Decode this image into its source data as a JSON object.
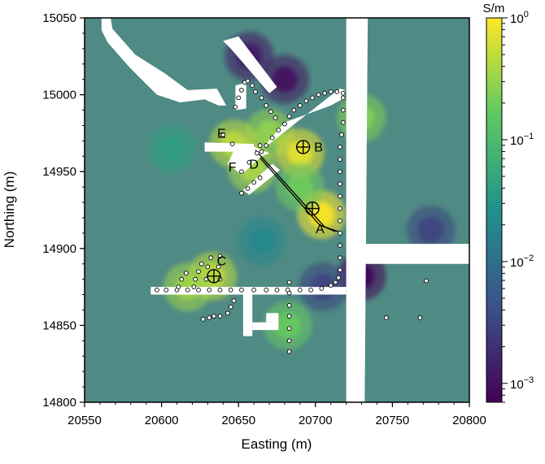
{
  "chart_data": {
    "type": "heatmap",
    "title": "",
    "xlabel": "Easting (m)",
    "ylabel": "Northing (m)",
    "xlim": [
      20550,
      20800
    ],
    "ylim": [
      14800,
      15050
    ],
    "xticks": [
      "20550",
      "20600",
      "20650",
      "20700",
      "20750",
      "20800"
    ],
    "yticks": [
      "14800",
      "14850",
      "14900",
      "14950",
      "15000",
      "15050"
    ],
    "colorbar": {
      "unit": "S/m",
      "scale": "log",
      "range": [
        0.0007,
        1
      ],
      "tick_labels": [
        {
          "value": 1,
          "base": "10",
          "exp": "0"
        },
        {
          "value": 0.1,
          "base": "10",
          "exp": "−1"
        },
        {
          "value": 0.01,
          "base": "10",
          "exp": "−2"
        },
        {
          "value": 0.001,
          "base": "10",
          "exp": "−3"
        }
      ],
      "colors": [
        "#440154",
        "#3b528b",
        "#21918c",
        "#5ec962",
        "#fde725"
      ]
    },
    "background_color": "#4f8a84",
    "anomalies": [
      {
        "x": 20670,
        "y": 14975,
        "value": 0.3
      },
      {
        "x": 20690,
        "y": 14962,
        "value": 0.8
      },
      {
        "x": 20704,
        "y": 14922,
        "value": 1.0
      },
      {
        "x": 20633,
        "y": 14882,
        "value": 0.5
      },
      {
        "x": 20617,
        "y": 14875,
        "value": 0.35
      },
      {
        "x": 20647,
        "y": 14968,
        "value": 0.5
      },
      {
        "x": 20659,
        "y": 14952,
        "value": 0.4
      },
      {
        "x": 20730,
        "y": 14985,
        "value": 0.25
      },
      {
        "x": 20682,
        "y": 14850,
        "value": 0.18
      },
      {
        "x": 20680,
        "y": 15010,
        "value": 0.001
      },
      {
        "x": 20657,
        "y": 15025,
        "value": 0.0012
      },
      {
        "x": 20730,
        "y": 14882,
        "value": 0.0008
      },
      {
        "x": 20775,
        "y": 14912,
        "value": 0.003
      },
      {
        "x": 20705,
        "y": 14875,
        "value": 0.003
      },
      {
        "x": 20690,
        "y": 14940,
        "value": 0.2
      },
      {
        "x": 20607,
        "y": 14965,
        "value": 0.04
      },
      {
        "x": 20665,
        "y": 14905,
        "value": 0.02
      }
    ],
    "masks": [
      {
        "type": "polygon",
        "points": [
          [
            20561,
            15050
          ],
          [
            20567,
            15050
          ],
          [
            20568,
            15043
          ],
          [
            20583,
            15026
          ],
          [
            20602,
            15014
          ],
          [
            20617,
            15003
          ],
          [
            20636,
            15004
          ],
          [
            20642,
            14993
          ],
          [
            20637,
            14993
          ],
          [
            20628,
            14997
          ],
          [
            20612,
            14995
          ],
          [
            20597,
            15000
          ],
          [
            20579,
            15018
          ],
          [
            20565,
            15034
          ],
          [
            20561,
            15042
          ]
        ]
      },
      {
        "type": "polygon",
        "points": [
          [
            20640,
            15035
          ],
          [
            20645,
            15030
          ],
          [
            20670,
            15001
          ],
          [
            20675,
            15005
          ],
          [
            20650,
            15038
          ]
        ]
      },
      {
        "type": "polygon",
        "points": [
          [
            20648,
            14990
          ],
          [
            20655,
            14991
          ],
          [
            20655,
            15008
          ],
          [
            20648,
            15006
          ]
        ]
      },
      {
        "type": "polygon",
        "points": [
          [
            20664,
            14966
          ],
          [
            20670,
            14968
          ],
          [
            20708,
            14998
          ],
          [
            20716,
            15004
          ],
          [
            20719,
            15003
          ],
          [
            20719,
            14998
          ],
          [
            20710,
            14993
          ],
          [
            20680,
            14982
          ],
          [
            20668,
            14968
          ]
        ]
      },
      {
        "type": "polygon",
        "points": [
          [
            20643,
            14955
          ],
          [
            20652,
            14948
          ],
          [
            20665,
            14960
          ],
          [
            20670,
            14962
          ],
          [
            20658,
            14967
          ],
          [
            20648,
            14966
          ]
        ]
      },
      {
        "type": "polygon",
        "points": [
          [
            20628,
            14969
          ],
          [
            20660,
            14968
          ],
          [
            20660,
            14963
          ],
          [
            20628,
            14963
          ]
        ]
      },
      {
        "type": "polygon",
        "points": [
          [
            20653,
            14938
          ],
          [
            20657,
            14935
          ],
          [
            20677,
            14951
          ],
          [
            20672,
            14955
          ]
        ]
      },
      {
        "type": "polygon",
        "points": [
          [
            20720,
            15050
          ],
          [
            20734,
            15050
          ],
          [
            20732,
            14800
          ],
          [
            20720,
            14800
          ]
        ]
      },
      {
        "type": "polygon",
        "points": [
          [
            20728,
            14903
          ],
          [
            20800,
            14903
          ],
          [
            20800,
            14890
          ],
          [
            20728,
            14890
          ]
        ]
      },
      {
        "type": "polygon",
        "points": [
          [
            20593,
            14875
          ],
          [
            20720,
            14875
          ],
          [
            20720,
            14870
          ],
          [
            20593,
            14870
          ]
        ]
      },
      {
        "type": "polygon",
        "points": [
          [
            20653,
            14870
          ],
          [
            20659,
            14870
          ],
          [
            20659,
            14843
          ],
          [
            20653,
            14843
          ]
        ]
      },
      {
        "type": "polygon",
        "points": [
          [
            20659,
            14852
          ],
          [
            20676,
            14852
          ],
          [
            20676,
            14847
          ],
          [
            20659,
            14847
          ]
        ]
      },
      {
        "type": "polygon",
        "points": [
          [
            20668,
            14852
          ],
          [
            20676,
            14852
          ],
          [
            20676,
            14858
          ],
          [
            20668,
            14858
          ]
        ]
      }
    ],
    "electrode_lines": [
      [
        [
          20646,
          14968
        ],
        [
          20640,
          14974
        ]
      ],
      [
        [
          20652,
          14950
        ],
        [
          20657,
          14956
        ],
        [
          20662,
          14962
        ],
        [
          20664,
          14967
        ]
      ],
      [
        [
          20652,
          14936
        ],
        [
          20656,
          14939
        ],
        [
          20660,
          14943
        ],
        [
          20664,
          14946
        ]
      ],
      [
        [
          20648,
          14992
        ],
        [
          20650,
          14998
        ],
        [
          20652,
          15003
        ],
        [
          20654,
          15008
        ],
        [
          20656,
          15009
        ],
        [
          20659,
          15006
        ],
        [
          20661,
          15002
        ],
        [
          20665,
          14998
        ],
        [
          20668,
          14993
        ],
        [
          20671,
          14989
        ],
        [
          20674,
          14985
        ]
      ],
      [
        [
          20665,
          14963
        ],
        [
          20668,
          14967
        ],
        [
          20672,
          14972
        ],
        [
          20676,
          14977
        ],
        [
          20680,
          14981
        ],
        [
          20683,
          14986
        ],
        [
          20686,
          14990
        ],
        [
          20690,
          14993
        ],
        [
          20694,
          14996
        ],
        [
          20698,
          14998
        ],
        [
          20702,
          15000
        ],
        [
          20706,
          15001
        ],
        [
          20710,
          15002
        ],
        [
          20714,
          15002
        ],
        [
          20718,
          15001
        ]
      ],
      [
        [
          20718,
          14998
        ],
        [
          20718,
          14990
        ],
        [
          20718,
          14982
        ],
        [
          20717,
          14974
        ],
        [
          20716,
          14966
        ],
        [
          20716,
          14958
        ],
        [
          20716,
          14950
        ],
        [
          20716,
          14942
        ],
        [
          20716,
          14934
        ],
        [
          20716,
          14926
        ],
        [
          20716,
          14918
        ],
        [
          20716,
          14910
        ],
        [
          20716,
          14902
        ],
        [
          20716,
          14894
        ],
        [
          20716,
          14886
        ],
        [
          20715,
          14881
        ],
        [
          20713,
          14878
        ]
      ],
      [
        [
          20597,
          14873
        ],
        [
          20603,
          14873
        ],
        [
          20610,
          14873
        ],
        [
          20617,
          14873
        ],
        [
          20624,
          14873
        ],
        [
          20631,
          14873
        ],
        [
          20638,
          14873
        ],
        [
          20645,
          14873
        ],
        [
          20652,
          14873
        ],
        [
          20660,
          14873
        ],
        [
          20668,
          14873
        ],
        [
          20675,
          14873
        ],
        [
          20682,
          14873
        ],
        [
          20690,
          14873
        ],
        [
          20697,
          14873
        ],
        [
          20704,
          14874
        ],
        [
          20710,
          14876
        ]
      ],
      [
        [
          20611,
          14875
        ],
        [
          20613,
          14880
        ],
        [
          20616,
          14884
        ]
      ],
      [
        [
          20621,
          14875
        ],
        [
          20622,
          14880
        ],
        [
          20624,
          14885
        ],
        [
          20626,
          14890
        ]
      ],
      [
        [
          20629,
          14880
        ],
        [
          20630,
          14888
        ],
        [
          20632,
          14894
        ]
      ],
      [
        [
          20638,
          14880
        ],
        [
          20637,
          14888
        ],
        [
          20638,
          14895
        ]
      ],
      [
        [
          20627,
          14854
        ],
        [
          20631,
          14855
        ],
        [
          20634,
          14856
        ],
        [
          20638,
          14856
        ]
      ],
      [
        [
          20643,
          14858
        ],
        [
          20645,
          14862
        ],
        [
          20647,
          14866
        ]
      ],
      [
        [
          20683,
          14878
        ],
        [
          20683,
          14871
        ],
        [
          20683,
          14863
        ],
        [
          20683,
          14856
        ],
        [
          20683,
          14848
        ],
        [
          20683,
          14840
        ],
        [
          20683,
          14833
        ]
      ],
      [
        [
          20746,
          14855
        ]
      ],
      [
        [
          20768,
          14855
        ]
      ],
      [
        [
          20772,
          14879
        ]
      ]
    ],
    "electrode_line_segments": [
      [
        [
          20661,
          14964
        ],
        [
          20706,
          14914
        ],
        [
          20713,
          14911
        ]
      ],
      [
        [
          20664,
          14959
        ],
        [
          20703,
          14915
        ],
        [
          20715,
          14911
        ]
      ]
    ],
    "annotations": [
      {
        "label": "A",
        "x": 20703,
        "y": 14910
      },
      {
        "label": "B",
        "x": 20702,
        "y": 14963
      },
      {
        "label": "C",
        "x": 20639,
        "y": 14889
      },
      {
        "label": "D",
        "x": 20660,
        "y": 14952
      },
      {
        "label": "E",
        "x": 20639,
        "y": 14972
      },
      {
        "label": "F",
        "x": 20646,
        "y": 14950
      }
    ],
    "crosshair_markers": [
      {
        "x": 20692,
        "y": 14966
      },
      {
        "x": 20698,
        "y": 14926
      },
      {
        "x": 20634,
        "y": 14882
      }
    ]
  }
}
